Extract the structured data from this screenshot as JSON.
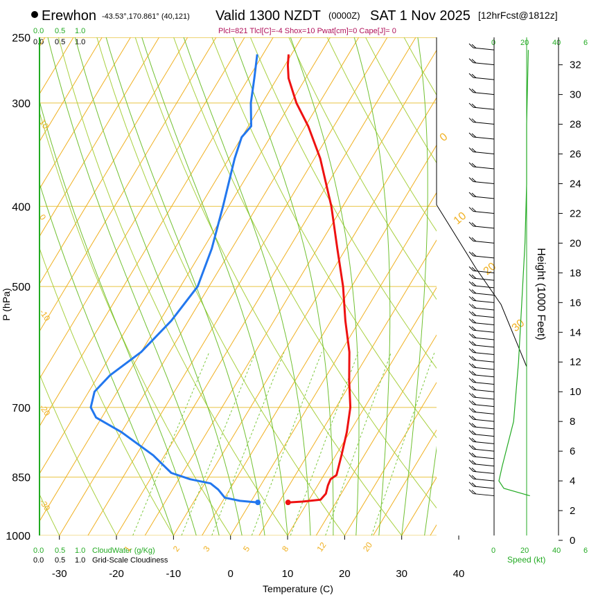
{
  "header": {
    "location": "Erewhon",
    "coords": "-43.53°,170.861° (40,121)",
    "valid": "Valid 1300 NZDT",
    "zulu": "(0000Z)",
    "date": "SAT 1 Nov 2025",
    "forecast": "[12hrFcst@1812z]",
    "params": "Plcl=821 Tlcl[C]=-4 Shox=10 Pwat[cm]=0 Cape[J]= 0"
  },
  "scales": {
    "cloudwater_ticks": [
      "0.0",
      "0.5",
      "1.0"
    ],
    "cloudwater_label": "CloudWater (g/Kg)",
    "cloudiness_ticks": [
      "0.0",
      "0.5",
      "1.0"
    ],
    "cloudiness_label": "Grid-Scale Cloudiness",
    "speed_ticks": [
      "0",
      "20",
      "40",
      "6"
    ],
    "speed_label": "Speed (kt)"
  },
  "colors": {
    "isobar": "#e8c340",
    "isotherm": "#f0b020",
    "dry_adiabat": "#a8d040",
    "moist_adiabat": "#70c030",
    "mixing_ratio": "#7cc83c",
    "temperature": "#ee1111",
    "dewpoint": "#2277ee",
    "cloud": "#22aa22",
    "speed": "#22aa22",
    "params": "#b0105a"
  },
  "chart_data": {
    "type": "skew-t",
    "xlabel": "Temperature (C)",
    "ylabel": "P (hPa)",
    "y2label": "Height (1000 Feet)",
    "xlim": [
      -34,
      36
    ],
    "ylim": [
      1000,
      250
    ],
    "x_ticks": [
      -30,
      -20,
      -10,
      0,
      10,
      20,
      30,
      40
    ],
    "p_ticks": [
      250,
      300,
      400,
      500,
      700,
      850,
      1000
    ],
    "height_ticks": [
      0,
      2,
      4,
      6,
      8,
      10,
      12,
      14,
      16,
      18,
      20,
      22,
      24,
      26,
      28,
      30,
      32
    ],
    "isotherm_labels": [
      {
        "t": 10,
        "text": "10"
      },
      {
        "t": 0,
        "text": "0"
      },
      {
        "t": -10,
        "text": "-10"
      },
      {
        "t": -20,
        "text": "-20"
      },
      {
        "t": -30,
        "text": "-30"
      }
    ],
    "isotherm_labels_right": [
      {
        "t": 0,
        "text": "0"
      },
      {
        "t": 10,
        "text": "10"
      },
      {
        "t": 20,
        "text": "20"
      },
      {
        "t": 30,
        "text": "30"
      }
    ],
    "mixing_ratio_labels": [
      "1",
      "2",
      "3",
      "5",
      "8",
      "12",
      "20"
    ],
    "temperature": [
      {
        "p": 912,
        "t": 6.6
      },
      {
        "p": 910,
        "t": 9
      },
      {
        "p": 905,
        "t": 12
      },
      {
        "p": 890,
        "t": 12.3
      },
      {
        "p": 870,
        "t": 11.8
      },
      {
        "p": 855,
        "t": 11.6
      },
      {
        "p": 845,
        "t": 12.2
      },
      {
        "p": 800,
        "t": 11
      },
      {
        "p": 750,
        "t": 9.5
      },
      {
        "p": 700,
        "t": 7.5
      },
      {
        "p": 650,
        "t": 4.5
      },
      {
        "p": 600,
        "t": 1.5
      },
      {
        "p": 550,
        "t": -2.5
      },
      {
        "p": 500,
        "t": -6.5
      },
      {
        "p": 450,
        "t": -11.5
      },
      {
        "p": 400,
        "t": -17
      },
      {
        "p": 350,
        "t": -24
      },
      {
        "p": 320,
        "t": -29.5
      },
      {
        "p": 300,
        "t": -34
      },
      {
        "p": 280,
        "t": -38
      },
      {
        "p": 270,
        "t": -39.5
      },
      {
        "p": 262,
        "t": -40.5
      }
    ],
    "dewpoint": [
      {
        "p": 912,
        "t": 1.3
      },
      {
        "p": 908,
        "t": -2
      },
      {
        "p": 900,
        "t": -5
      },
      {
        "p": 880,
        "t": -7
      },
      {
        "p": 865,
        "t": -9
      },
      {
        "p": 855,
        "t": -13
      },
      {
        "p": 840,
        "t": -17
      },
      {
        "p": 800,
        "t": -22
      },
      {
        "p": 750,
        "t": -30
      },
      {
        "p": 720,
        "t": -36
      },
      {
        "p": 700,
        "t": -38
      },
      {
        "p": 670,
        "t": -39
      },
      {
        "p": 640,
        "t": -38
      },
      {
        "p": 600,
        "t": -35
      },
      {
        "p": 550,
        "t": -33
      },
      {
        "p": 500,
        "t": -32
      },
      {
        "p": 450,
        "t": -33.5
      },
      {
        "p": 400,
        "t": -36
      },
      {
        "p": 350,
        "t": -39
      },
      {
        "p": 330,
        "t": -40
      },
      {
        "p": 320,
        "t": -39.5
      },
      {
        "p": 300,
        "t": -42
      },
      {
        "p": 280,
        "t": -44
      },
      {
        "p": 262,
        "t": -46
      }
    ],
    "parcel_markers": [
      {
        "name": "surface temperature",
        "p": 912,
        "t": 6.6
      },
      {
        "name": "surface dewpoint",
        "p": 912,
        "t": 1.3
      }
    ],
    "wind_speed_kt": [
      {
        "h": 3,
        "v": 22
      },
      {
        "h": 3.5,
        "v": 6
      },
      {
        "h": 4,
        "v": 3
      },
      {
        "h": 5,
        "v": 5
      },
      {
        "h": 8,
        "v": 12
      },
      {
        "h": 12,
        "v": 15
      },
      {
        "h": 16,
        "v": 17
      },
      {
        "h": 20,
        "v": 19
      },
      {
        "h": 24,
        "v": 20
      },
      {
        "h": 28,
        "v": 20
      },
      {
        "h": 33,
        "v": 21
      }
    ],
    "wind_barb_heights": [
      3,
      3.5,
      4,
      4.5,
      5,
      5.5,
      6,
      6.5,
      7,
      7.5,
      8,
      8.5,
      9,
      9.5,
      10,
      10.5,
      11,
      11.5,
      12,
      12.5,
      13,
      13.5,
      14,
      14.5,
      15,
      15.5,
      16,
      16.5,
      17,
      17.5,
      18,
      19,
      20,
      21,
      22,
      23,
      24,
      25,
      26,
      27,
      28,
      29,
      30,
      31,
      32,
      33
    ]
  }
}
